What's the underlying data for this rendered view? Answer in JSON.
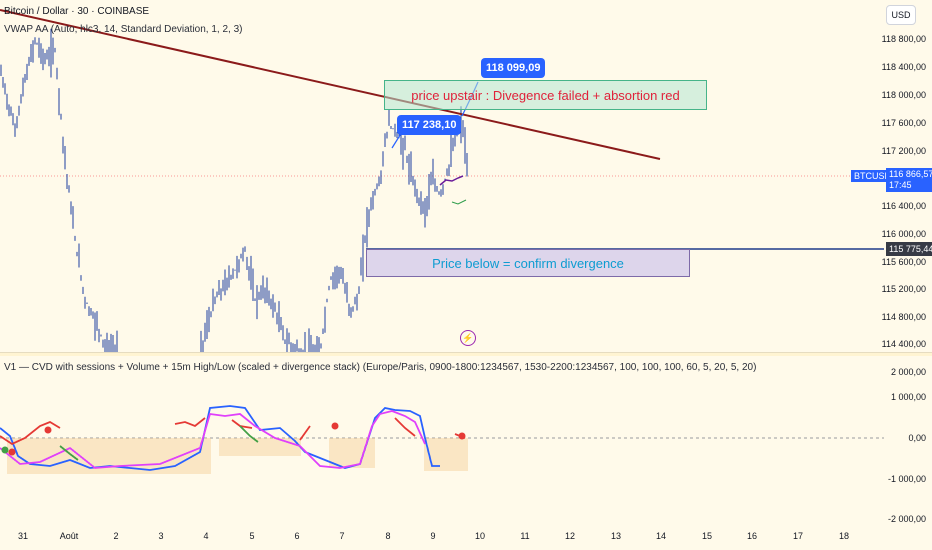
{
  "chart": {
    "title": "Bitcoin / Dollar · 30 · COINBASE",
    "vwap_legend": "VWAP AA (Auto, hlc3, 14, Standard Deviation, 1, 2, 3)",
    "currency_button": "USD"
  },
  "price_axis": {
    "ticks": [
      "118 800,00",
      "118 400,00",
      "118 000,00",
      "117 600,00",
      "117 200,00",
      "116 400,00",
      "116 000,00",
      "115 600,00",
      "115 200,00",
      "114 800,00",
      "114 400,00"
    ],
    "symbol_tag": "BTCUSD",
    "current_price": "116 866,57",
    "countdown": "17:45",
    "level_price": "115 775,44"
  },
  "annotations": {
    "high_label": "118 099,09",
    "mid_label": "117 238,10",
    "green_box_text": "price upstair : Divegence failed + absortion red",
    "purple_box_text": "Price below = confirm divergence"
  },
  "indicator": {
    "legend": "V1 — CVD with sessions + Volume + 15m High/Low (scaled + divergence stack) (Europe/Paris, 0900-1800:1234567, 1530-2200:1234567, 100, 100, 100, 60, 5, 20, 5, 20)",
    "ticks": [
      "2 000,00",
      "1 000,00",
      "0,00",
      "-1 000,00",
      "-2 000,00"
    ]
  },
  "time_axis": {
    "ticks": [
      "31",
      "Août",
      "2",
      "3",
      "4",
      "5",
      "6",
      "7",
      "8",
      "9",
      "10",
      "11",
      "12",
      "13",
      "14",
      "15",
      "16",
      "17",
      "18"
    ]
  },
  "colors": {
    "background": "#fffaea",
    "candle": "#1e3fa0",
    "trendline": "#8b1a1a",
    "accent_blue": "#2962ff",
    "annotation_red": "#e0223a",
    "annotation_cyan": "#0d9cd1"
  }
}
